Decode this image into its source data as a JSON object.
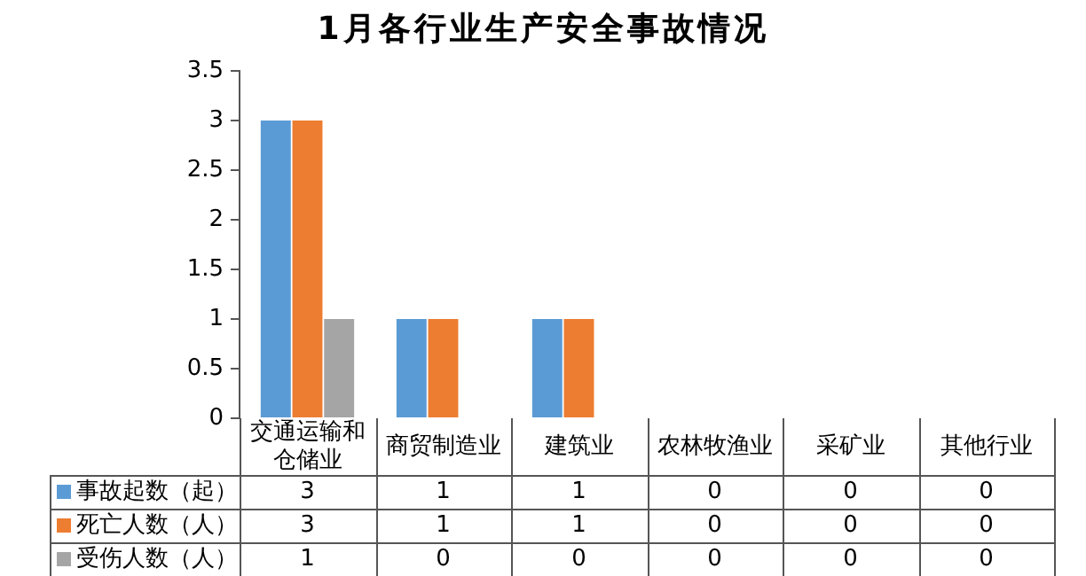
{
  "chart_data": {
    "type": "bar",
    "title": "1月各行业生产安全事故情况",
    "categories": [
      "交通运输和仓储业",
      "商贸制造业",
      "建筑业",
      "农林牧渔业",
      "采矿业",
      "其他行业"
    ],
    "series": [
      {
        "name": "事故起数（起）",
        "color": "#5b9bd5",
        "values": [
          3,
          1,
          1,
          0,
          0,
          0
        ]
      },
      {
        "name": "死亡人数（人）",
        "color": "#ed7d31",
        "values": [
          3,
          1,
          1,
          0,
          0,
          0
        ]
      },
      {
        "name": "受伤人数（人）",
        "color": "#a5a5a5",
        "values": [
          1,
          0,
          0,
          0,
          0,
          0
        ]
      }
    ],
    "ylim": [
      0,
      3.5
    ],
    "yticks": [
      0,
      0.5,
      1,
      1.5,
      2,
      2.5,
      3,
      3.5
    ],
    "grid": false,
    "legend": "bottom",
    "data_labels": true
  }
}
